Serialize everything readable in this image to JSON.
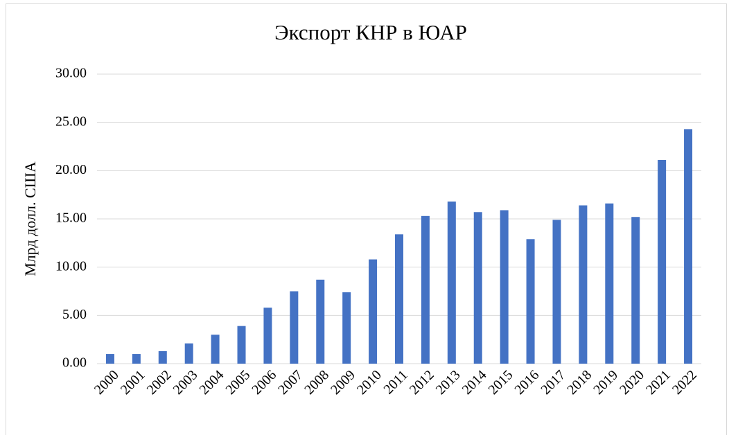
{
  "chart_data": {
    "type": "bar",
    "title": "Экспорт  КНР в ЮАР",
    "y_label": "Млрд долл. США",
    "categories": [
      "2000",
      "2001",
      "2002",
      "2003",
      "2004",
      "2005",
      "2006",
      "2007",
      "2008",
      "2009",
      "2010",
      "2011",
      "2012",
      "2013",
      "2014",
      "2015",
      "2016",
      "2017",
      "2018",
      "2019",
      "2020",
      "2021",
      "2022"
    ],
    "values": [
      1.0,
      1.0,
      1.3,
      2.1,
      3.0,
      3.9,
      5.8,
      7.5,
      8.7,
      7.4,
      10.8,
      13.4,
      15.3,
      16.8,
      15.7,
      15.9,
      12.9,
      14.9,
      16.4,
      16.6,
      15.2,
      21.1,
      24.3
    ],
    "color": "#4472c4",
    "ylim": [
      0,
      30
    ],
    "yticks": [
      {
        "value": 0,
        "label": "0.00"
      },
      {
        "value": 5,
        "label": "5.00"
      },
      {
        "value": 10,
        "label": "10.00"
      },
      {
        "value": 15,
        "label": "15.00"
      },
      {
        "value": 20,
        "label": "20.00"
      },
      {
        "value": 25,
        "label": "25.00"
      },
      {
        "value": 30,
        "label": "30.00"
      }
    ],
    "grid": true
  }
}
